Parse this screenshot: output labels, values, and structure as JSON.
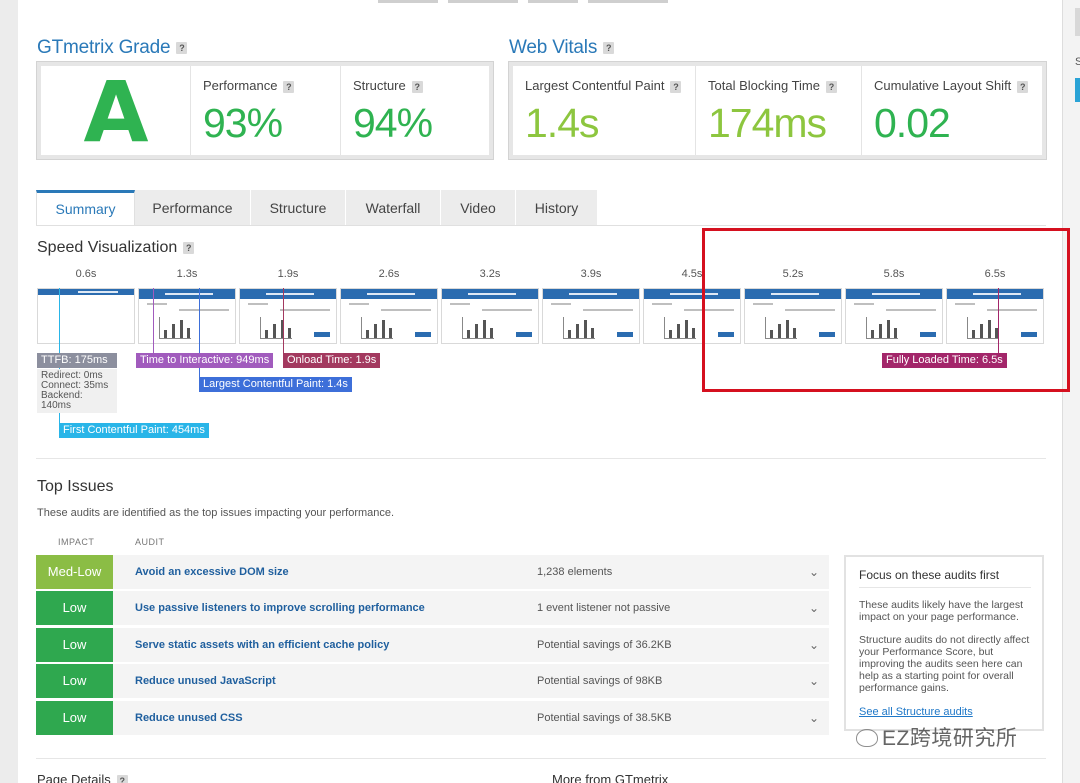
{
  "grade_section": {
    "title": "GTmetrix Grade",
    "help": "?",
    "grade": "A",
    "metrics": [
      {
        "label": "Performance",
        "value": "93%"
      },
      {
        "label": "Structure",
        "value": "94%"
      }
    ]
  },
  "vitals_section": {
    "title": "Web Vitals",
    "help": "?",
    "metrics": [
      {
        "label": "Largest Contentful Paint",
        "value": "1.4s"
      },
      {
        "label": "Total Blocking Time",
        "value": "174ms"
      },
      {
        "label": "Cumulative Layout Shift",
        "value": "0.02"
      }
    ]
  },
  "tabs": [
    {
      "label": "Summary",
      "active": true
    },
    {
      "label": "Performance",
      "active": false
    },
    {
      "label": "Structure",
      "active": false
    },
    {
      "label": "Waterfall",
      "active": false
    },
    {
      "label": "Video",
      "active": false
    },
    {
      "label": "History",
      "active": false
    }
  ],
  "speed_viz": {
    "title": "Speed Visualization",
    "help": "?",
    "ticks": [
      "0.6s",
      "1.3s",
      "1.9s",
      "2.6s",
      "3.2s",
      "3.9s",
      "4.5s",
      "5.2s",
      "5.8s",
      "6.5s"
    ],
    "markers": {
      "ttfb": "TTFB: 175ms",
      "ttfb_details": [
        "Redirect: 0ms",
        "Connect: 35ms",
        "Backend: 140ms"
      ],
      "tti": "Time to Interactive: 949ms",
      "onload": "Onload Time: 1.9s",
      "lcp": "Largest Contentful Paint: 1.4s",
      "fcp": "First Contentful Paint: 454ms",
      "fully_loaded": "Fully Loaded Time: 6.5s"
    }
  },
  "top_issues": {
    "title": "Top Issues",
    "description": "These audits are identified as the top issues impacting your performance.",
    "columns": {
      "impact": "IMPACT",
      "audit": "AUDIT"
    },
    "rows": [
      {
        "impact": "Med-Low",
        "audit": "Avoid an excessive DOM size",
        "detail": "1,238 elements",
        "color": "#8bbd45"
      },
      {
        "impact": "Low",
        "audit": "Use passive listeners to improve scrolling performance",
        "detail": "1 event listener not passive",
        "color": "#2fa84f"
      },
      {
        "impact": "Low",
        "audit": "Serve static assets with an efficient cache policy",
        "detail": "Potential savings of 36.2KB",
        "color": "#2fa84f"
      },
      {
        "impact": "Low",
        "audit": "Reduce unused JavaScript",
        "detail": "Potential savings of 98KB",
        "color": "#2fa84f"
      },
      {
        "impact": "Low",
        "audit": "Reduce unused CSS",
        "detail": "Potential savings of 38.5KB",
        "color": "#2fa84f"
      }
    ],
    "focus": {
      "title": "Focus on these audits first",
      "p1": "These audits likely have the largest impact on your page performance.",
      "p2": "Structure audits do not directly affect your Performance Score, but improving the audits seen here can help as a starting point for overall performance gains.",
      "link": "See all Structure audits"
    }
  },
  "footer": {
    "left": "Page Details",
    "help": "?",
    "right": "More from GTmetrix"
  },
  "watermark": "EZ跨境研究所",
  "colors": {
    "brand_blue": "#2a79b8",
    "grade_green": "#2fb351",
    "highlight_red": "#d5101f"
  }
}
